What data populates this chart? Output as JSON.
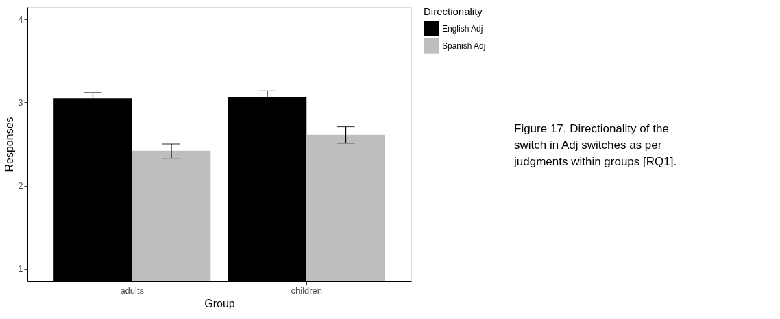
{
  "chart_data": {
    "type": "bar",
    "xlabel": "Group",
    "ylabel": "Responses",
    "legend_title": "Directionality",
    "legend": "right",
    "grid": false,
    "categories": [
      "adults",
      "children"
    ],
    "ylim": [
      0.85,
      4.15
    ],
    "yticks": [
      1,
      2,
      3,
      4
    ],
    "series": [
      {
        "name": "English Adj",
        "color": "#000000",
        "values": [
          3.05,
          3.06
        ],
        "errors": [
          0.07,
          0.08
        ]
      },
      {
        "name": "Spanish Adj",
        "color": "#bebebe",
        "values": [
          2.42,
          2.61
        ],
        "errors": [
          [
            2.33,
            2.5
          ],
          [
            2.51,
            2.71
          ]
        ]
      }
    ],
    "annotations": [
      "Figure 17. Directionality of the switch in Adj switches as per judgments within groups [RQ1]."
    ]
  }
}
